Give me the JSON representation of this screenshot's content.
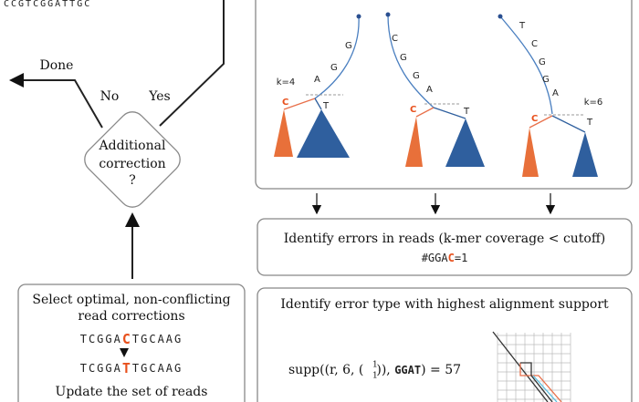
{
  "top_sequence": "CCGTCGGATTGC",
  "flow": {
    "done": "Done",
    "no": "No",
    "yes": "Yes",
    "decision": [
      "Additional",
      "correction",
      "?"
    ]
  },
  "select_box": {
    "title": [
      "Select optimal, non-conflicting",
      "read corrections"
    ],
    "before": {
      "prefix": "TCGGA",
      "highlight": "C",
      "suffix": "TGCAAG"
    },
    "after": {
      "prefix": "TCGGA",
      "highlight": "T",
      "suffix": "TGCAAG"
    },
    "footer": "Update the set of reads"
  },
  "trees": [
    {
      "k": "k=4",
      "path": [
        "G",
        "G",
        "A"
      ],
      "branch_error": "C",
      "branch_ok": "T"
    },
    {
      "path": [
        "C",
        "G",
        "G",
        "A"
      ],
      "branch_error": "C",
      "branch_ok": "T"
    },
    {
      "k": "k=6",
      "path": [
        "T",
        "C",
        "G",
        "G",
        "A"
      ],
      "branch_error": "C",
      "branch_ok": "T"
    }
  ],
  "identify_errors": {
    "title": "Identify errors in reads (k-mer coverage < cutoff)",
    "kmer_prefix": "#GGA",
    "kmer_highlight": "C",
    "kmer_suffix": "=1"
  },
  "identify_type": {
    "title": "Identify error type with highest alignment support",
    "formula": {
      "start": "supp((r, 6, (",
      "top": "1",
      "bottom": "1",
      "middle": ")), ",
      "kmer": "GGAT",
      "end": ") = 57"
    }
  }
}
